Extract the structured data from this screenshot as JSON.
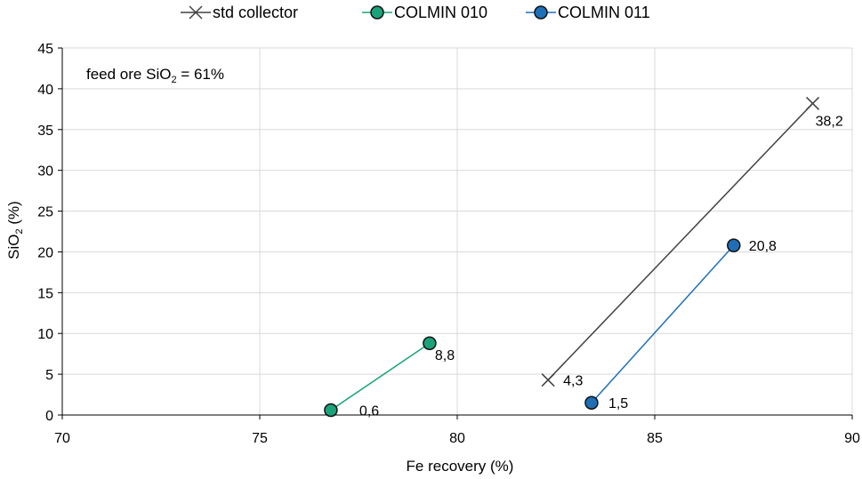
{
  "chart_data": {
    "type": "line",
    "xlabel": {
      "base": "Fe recovery (%)"
    },
    "ylabel": {
      "base": "SiO",
      "sub": "2",
      "tail": " (%)"
    },
    "annotation": {
      "base": "feed ore SiO",
      "sub": "2",
      "tail": " = 61%"
    },
    "xlim": [
      70,
      90
    ],
    "ylim": [
      0,
      45
    ],
    "xticks": [
      70,
      75,
      80,
      85,
      90
    ],
    "yticks": [
      0,
      5,
      10,
      15,
      20,
      25,
      30,
      35,
      40,
      45
    ],
    "grid": "vertical-and-horizontal",
    "legend_position": "top",
    "series": [
      {
        "name": "std collector",
        "color": "#404040",
        "marker": "x",
        "points": [
          {
            "x": 82.3,
            "y": 4.3,
            "label": "4,3"
          },
          {
            "x": 89.0,
            "y": 38.2,
            "label": "38,2"
          }
        ]
      },
      {
        "name": "COLMIN 010",
        "color": "#1aa37a",
        "marker": "circle",
        "points": [
          {
            "x": 76.8,
            "y": 0.6,
            "label": "0,6"
          },
          {
            "x": 79.3,
            "y": 8.8,
            "label": "8,8"
          }
        ]
      },
      {
        "name": "COLMIN 011",
        "color": "#1f6fb7",
        "marker": "circle",
        "points": [
          {
            "x": 83.4,
            "y": 1.5,
            "label": "1,5"
          },
          {
            "x": 87.0,
            "y": 20.8,
            "label": "20,8"
          }
        ]
      }
    ]
  }
}
